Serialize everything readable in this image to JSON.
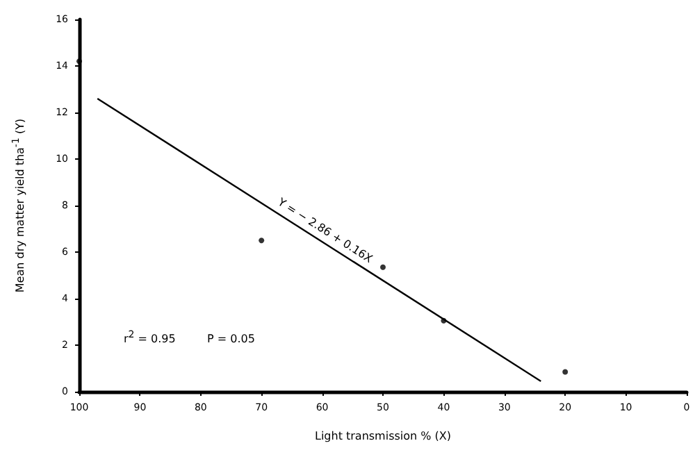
{
  "chart_data": {
    "type": "scatter",
    "xlabel": "Light transmission % (X)",
    "ylabel": "Mean dry matter yield tha$^{-1}$ (Y)",
    "series": [
      {
        "color": "#000000",
        "marker": "circle",
        "x": [
          100,
          70,
          50,
          40,
          20
        ],
        "values": [
          14.2,
          6.5,
          5.35,
          3.05,
          0.85
        ]
      },
      {
        "type": "line",
        "name": "Y = − 2.86 + 0.16X",
        "color": "#000000",
        "marker": "none",
        "line_style": "solid",
        "x": [
          97,
          24
        ],
        "values": [
          12.6,
          0.45
        ]
      }
    ],
    "annotations": [
      "r$^{2}$ = 0.95",
      "P = 0.05"
    ],
    "xlim": [
      100,
      0
    ],
    "xticks": [
      100,
      90,
      80,
      70,
      60,
      50,
      40,
      30,
      20,
      10,
      0
    ],
    "ylim": [
      0,
      16
    ],
    "yticks": [
      0,
      2,
      4,
      6,
      8,
      10,
      12,
      14,
      16
    ],
    "grid": false,
    "legend": false
  }
}
